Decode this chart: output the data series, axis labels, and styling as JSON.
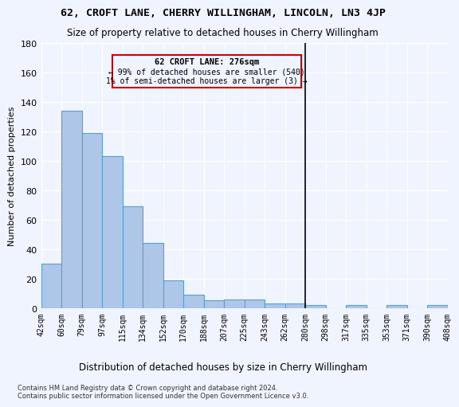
{
  "title": "62, CROFT LANE, CHERRY WILLINGHAM, LINCOLN, LN3 4JP",
  "subtitle": "Size of property relative to detached houses in Cherry Willingham",
  "xlabel": "Distribution of detached houses by size in Cherry Willingham",
  "ylabel": "Number of detached properties",
  "footer": "Contains HM Land Registry data © Crown copyright and database right 2024.\nContains public sector information licensed under the Open Government Licence v3.0.",
  "bin_labels": [
    "42sqm",
    "60sqm",
    "79sqm",
    "97sqm",
    "115sqm",
    "134sqm",
    "152sqm",
    "170sqm",
    "188sqm",
    "207sqm",
    "225sqm",
    "243sqm",
    "262sqm",
    "280sqm",
    "298sqm",
    "317sqm",
    "335sqm",
    "353sqm",
    "371sqm",
    "390sqm",
    "408sqm"
  ],
  "bar_heights": [
    30,
    134,
    119,
    103,
    69,
    44,
    19,
    9,
    5,
    6,
    6,
    3,
    3,
    2,
    0,
    2,
    0,
    2,
    0,
    2
  ],
  "bar_color": "#aec6e8",
  "bar_edge_color": "#5a9fd4",
  "ylim": [
    0,
    180
  ],
  "yticks": [
    0,
    20,
    40,
    60,
    80,
    100,
    120,
    140,
    160,
    180
  ],
  "annotation_title": "62 CROFT LANE: 276sqm",
  "annotation_line1": "← 99% of detached houses are smaller (540)",
  "annotation_line2": "1% of semi-detached houses are larger (3) →",
  "annotation_box_color": "#cc0000",
  "background_color": "#f0f4ff",
  "property_line_bin": 13
}
